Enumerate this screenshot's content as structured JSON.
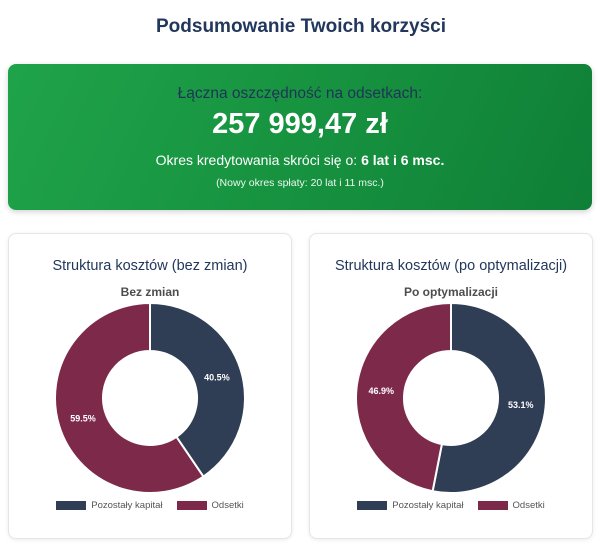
{
  "title": "Podsumowanie Twoich korzyści",
  "summary": {
    "label": "Łączna oszczędność na odsetkach:",
    "amount": "257 999,47 zł",
    "term_prefix": "Okres kredytowania skróci się o:",
    "term_value": "6 lat i 6 msc.",
    "new_term_note": "(Nowy okres spłaty: 20 lat i 11 msc.)"
  },
  "colors": {
    "capital": "#2f3e54",
    "interest": "#7d2a4a",
    "hero": "#16913f"
  },
  "cards": [
    {
      "title": "Struktura kosztów (bez zmian)",
      "chart_title": "Bez zmian",
      "legend": [
        "Pozostały kapitał",
        "Odsetki"
      ]
    },
    {
      "title": "Struktura kosztów (po optymalizacji)",
      "chart_title": "Po optymalizacji",
      "legend": [
        "Pozostały kapitał",
        "Odsetki"
      ]
    }
  ],
  "chart_data": [
    {
      "type": "pie",
      "title": "Bez zmian",
      "categories": [
        "Pozostały kapitał",
        "Odsetki"
      ],
      "values": [
        40.5,
        59.5
      ],
      "labels": [
        "40.5%",
        "59.5%"
      ],
      "legend_position": "bottom"
    },
    {
      "type": "pie",
      "title": "Po optymalizacji",
      "categories": [
        "Pozostały kapitał",
        "Odsetki"
      ],
      "values": [
        53.1,
        46.9
      ],
      "labels": [
        "53.1%",
        "46.9%"
      ],
      "legend_position": "bottom"
    }
  ]
}
